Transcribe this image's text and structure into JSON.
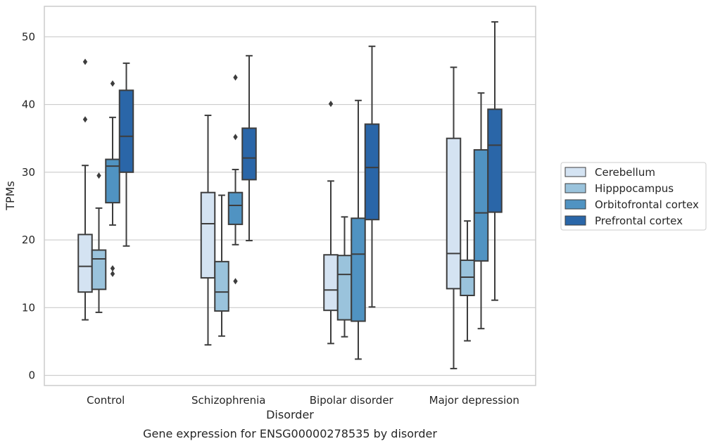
{
  "chart_data": {
    "type": "box",
    "xlabel": "Disorder",
    "ylabel": "TPMs",
    "caption": "Gene expression for ENSG00000278535 by disorder",
    "ylim": [
      -1.5,
      54.5
    ],
    "yticks": [
      0,
      10,
      20,
      30,
      40,
      50
    ],
    "grid": "horizontal",
    "legend_position": "right",
    "categories": [
      "Control",
      "Schizophrenia",
      "Bipolar disorder",
      "Major depression"
    ],
    "series": [
      {
        "name": "Cerebellum",
        "color": "#d4e3f2",
        "boxes": [
          {
            "whislo": 8.2,
            "q1": 12.3,
            "med": 16.1,
            "q3": 20.8,
            "whishi": 31.0,
            "fliers": [
              37.8,
              46.3
            ]
          },
          {
            "whislo": 4.5,
            "q1": 14.4,
            "med": 22.4,
            "q3": 27.0,
            "whishi": 38.4,
            "fliers": []
          },
          {
            "whislo": 4.7,
            "q1": 9.6,
            "med": 12.6,
            "q3": 17.8,
            "whishi": 28.7,
            "fliers": [
              40.1
            ]
          },
          {
            "whislo": 1.0,
            "q1": 12.8,
            "med": 18.0,
            "q3": 35.0,
            "whishi": 45.5,
            "fliers": []
          }
        ]
      },
      {
        "name": "Hipppocampus",
        "color": "#9ac3dc",
        "boxes": [
          {
            "whislo": 9.3,
            "q1": 12.7,
            "med": 17.2,
            "q3": 18.5,
            "whishi": 24.7,
            "fliers": [
              29.5
            ]
          },
          {
            "whislo": 5.8,
            "q1": 9.5,
            "med": 12.3,
            "q3": 16.8,
            "whishi": 26.6,
            "fliers": []
          },
          {
            "whislo": 5.7,
            "q1": 8.2,
            "med": 14.9,
            "q3": 17.7,
            "whishi": 23.4,
            "fliers": []
          },
          {
            "whislo": 5.1,
            "q1": 11.8,
            "med": 14.5,
            "q3": 17.0,
            "whishi": 22.8,
            "fliers": []
          }
        ]
      },
      {
        "name": "Orbitofrontal cortex",
        "color": "#5093c2",
        "boxes": [
          {
            "whislo": 22.2,
            "q1": 25.5,
            "med": 30.9,
            "q3": 31.9,
            "whishi": 38.1,
            "fliers": [
              43.1,
              15.8,
              15.0
            ]
          },
          {
            "whislo": 19.3,
            "q1": 22.3,
            "med": 25.1,
            "q3": 27.0,
            "whishi": 30.4,
            "fliers": [
              35.2,
              44.0,
              13.9
            ]
          },
          {
            "whislo": 2.4,
            "q1": 8.0,
            "med": 17.9,
            "q3": 23.2,
            "whishi": 40.6,
            "fliers": []
          },
          {
            "whislo": 6.9,
            "q1": 16.9,
            "med": 24.0,
            "q3": 33.3,
            "whishi": 41.7,
            "fliers": []
          }
        ]
      },
      {
        "name": "Prefrontal cortex",
        "color": "#2a66a8",
        "boxes": [
          {
            "whislo": 19.1,
            "q1": 30.0,
            "med": 35.3,
            "q3": 42.1,
            "whishi": 46.1,
            "fliers": []
          },
          {
            "whislo": 19.9,
            "q1": 28.9,
            "med": 32.1,
            "q3": 36.5,
            "whishi": 47.2,
            "fliers": []
          },
          {
            "whislo": 10.1,
            "q1": 23.0,
            "med": 30.7,
            "q3": 37.1,
            "whishi": 48.6,
            "fliers": []
          },
          {
            "whislo": 11.1,
            "q1": 24.1,
            "med": 34.0,
            "q3": 39.3,
            "whishi": 52.2,
            "fliers": []
          }
        ]
      }
    ]
  }
}
